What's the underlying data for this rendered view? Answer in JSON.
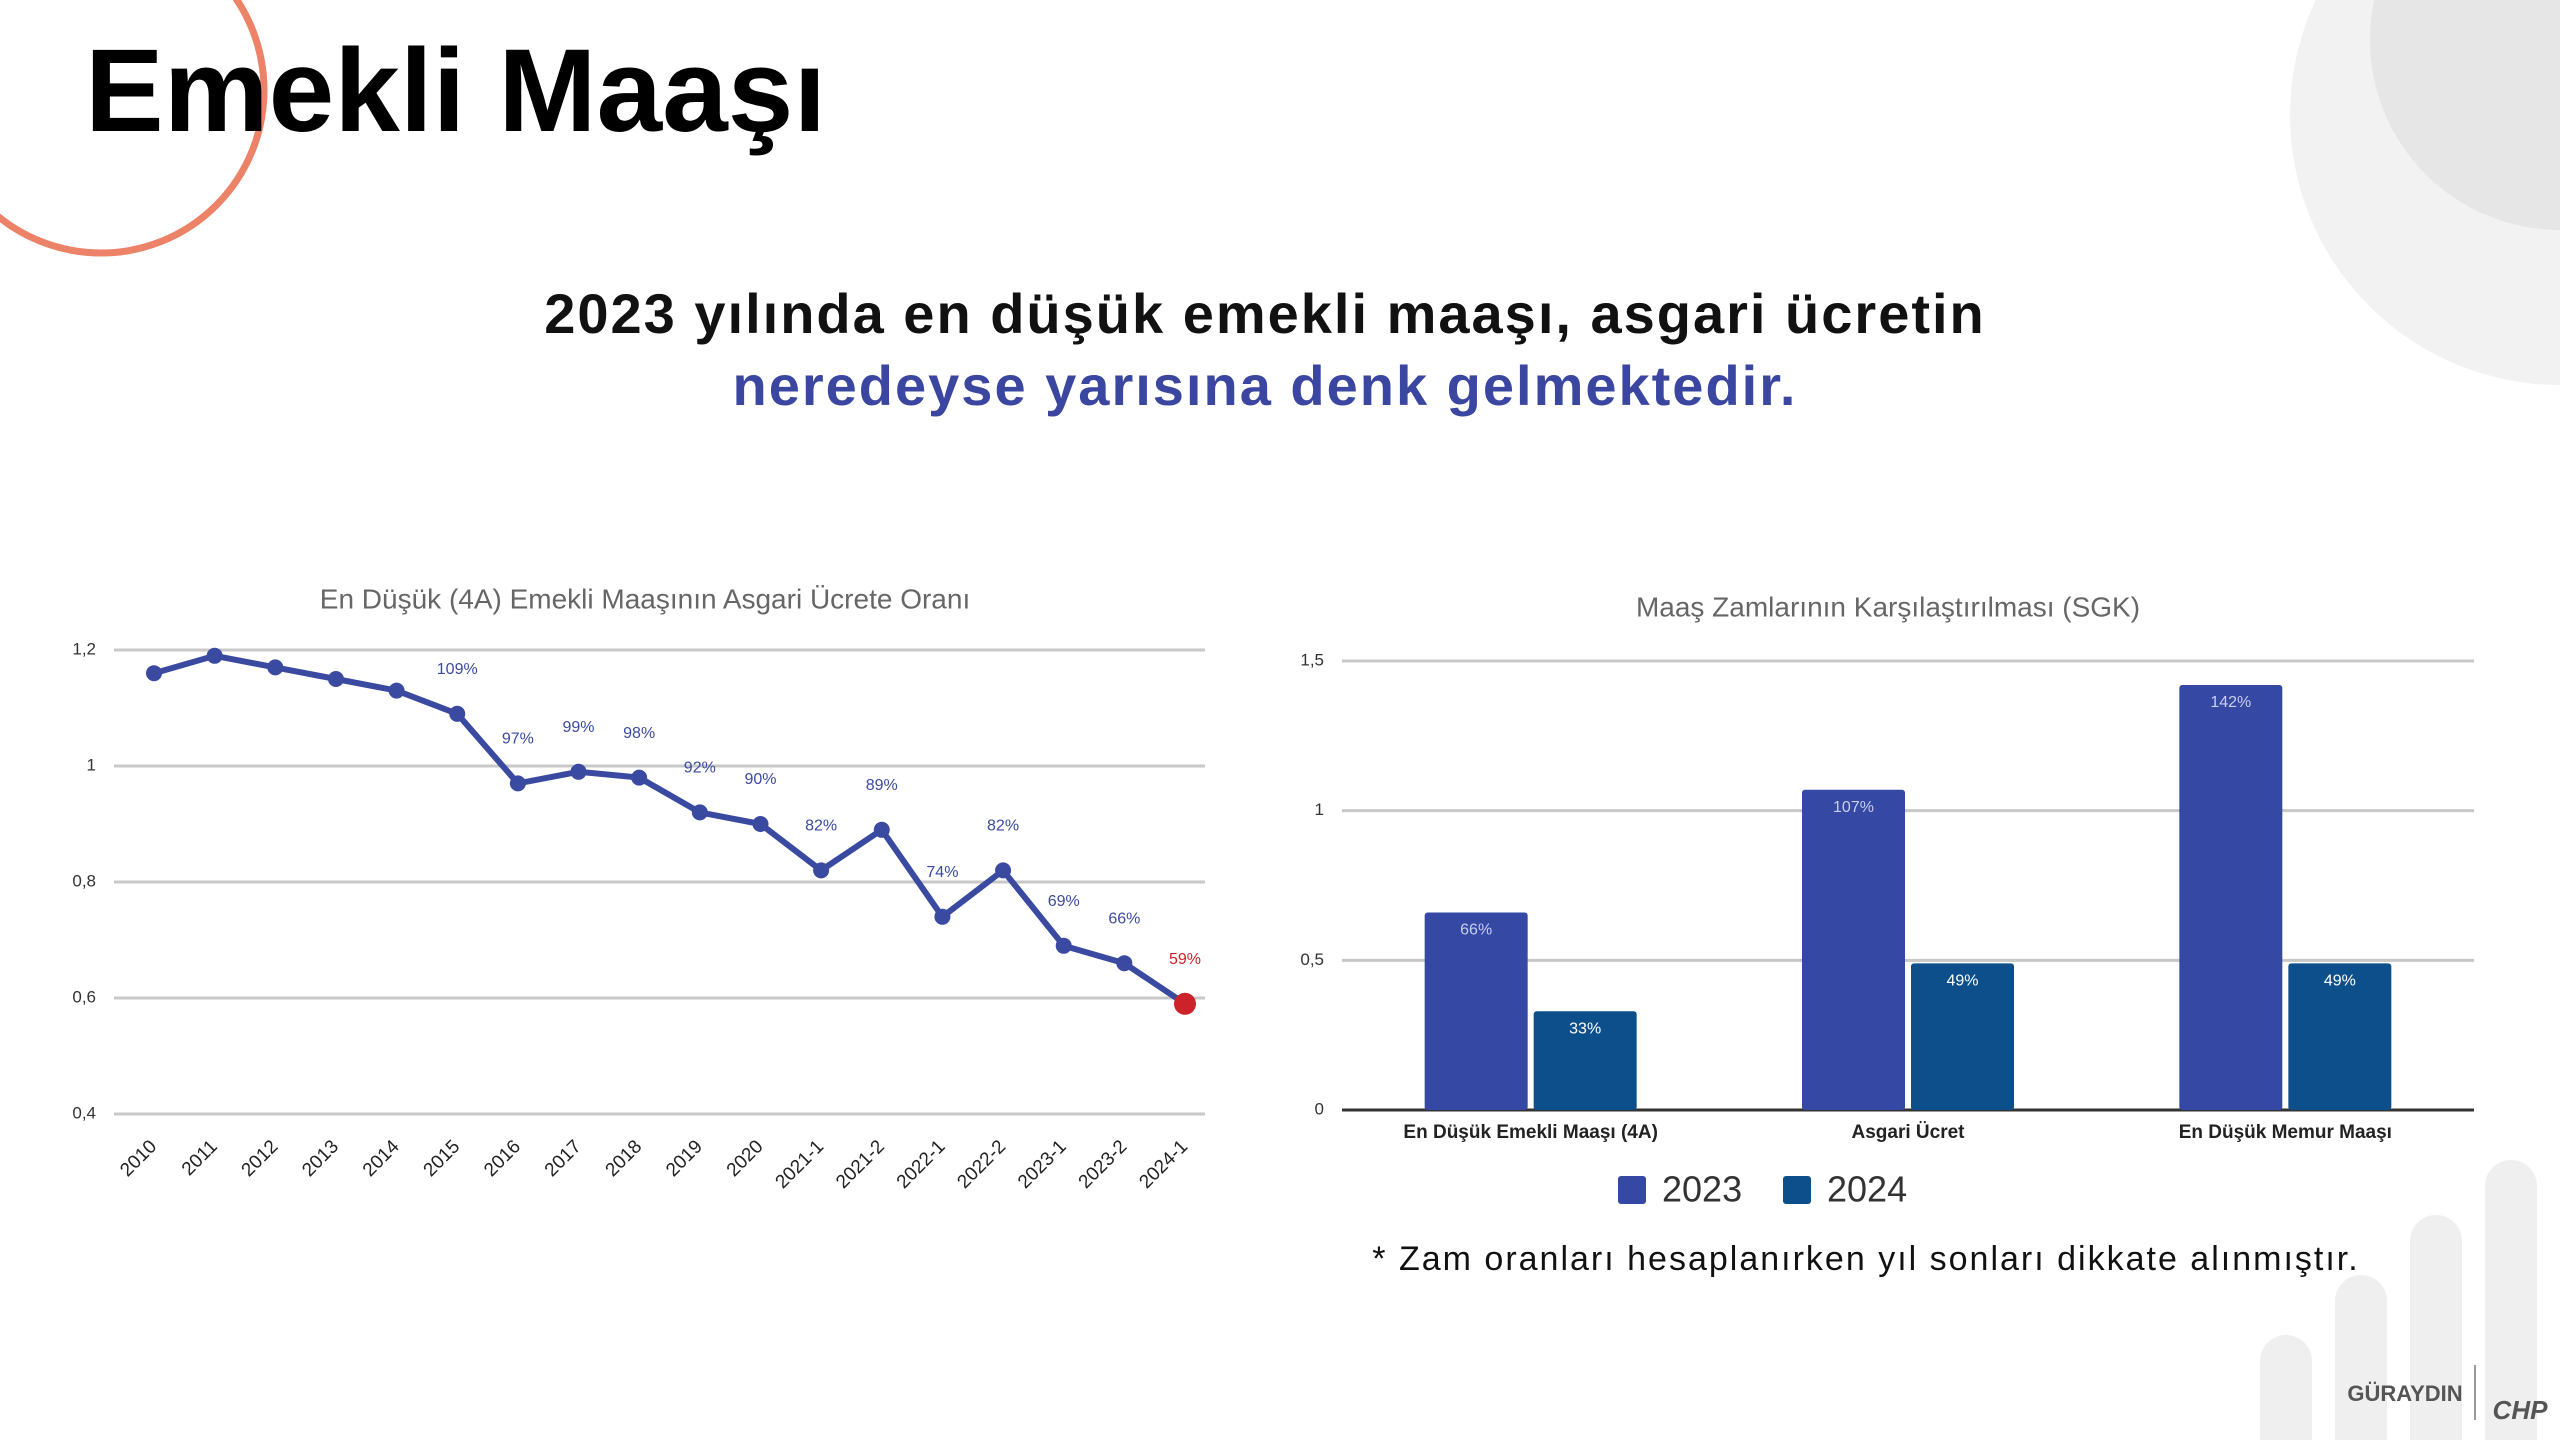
{
  "title": "Emekli Maaşı",
  "headline": [
    "2023 yılında en düşük emekli maaşı, asgari ücretin",
    "neredeyse yarısına denk gelmektedir."
  ],
  "chart_data": [
    {
      "type": "line",
      "title": "En Düşük (4A) Emekli Maaşının Asgari Ücrete Oranı",
      "categories": [
        "2010",
        "2011",
        "2012",
        "2013",
        "2014",
        "2015",
        "2016",
        "2017",
        "2018",
        "2019",
        "2020",
        "2021-1",
        "2021-2",
        "2022-1",
        "2022-2",
        "2023-1",
        "2023-2",
        "2024-1"
      ],
      "values": [
        1.16,
        1.19,
        1.17,
        1.15,
        1.13,
        1.09,
        0.97,
        0.99,
        0.98,
        0.92,
        0.9,
        0.82,
        0.89,
        0.74,
        0.82,
        0.69,
        0.66,
        0.59
      ],
      "value_labels": [
        null,
        null,
        null,
        null,
        null,
        "109%",
        "97%",
        "99%",
        "98%",
        "92%",
        "90%",
        "82%",
        "89%",
        "74%",
        "82%",
        "69%",
        "66%",
        "59%"
      ],
      "color": "#3a4aa0",
      "highlight_color": "#cc2229",
      "ylim": [
        0.4,
        1.2
      ],
      "yticks": [
        {
          "value": 0.4,
          "label": "0,4"
        },
        {
          "value": 0.6,
          "label": "0,6"
        },
        {
          "value": 0.8,
          "label": "0,8"
        },
        1,
        {
          "value": 1.2,
          "label": "1,2"
        }
      ],
      "grid": true
    },
    {
      "type": "bar",
      "title": "Maaş Zamlarının Karşılaştırılması (SGK)",
      "categories": [
        "En Düşük Emekli Maaşı (4A)",
        "Asgari Ücret",
        "En Düşük Memur Maaşı"
      ],
      "series": [
        {
          "name": "2023",
          "color": "#3548a3",
          "values": [
            0.66,
            1.07,
            1.42
          ],
          "value_labels": [
            "66%",
            "107%",
            "142%"
          ]
        },
        {
          "name": "2024",
          "color": "#0d4f8b",
          "values": [
            0.33,
            0.49,
            0.49
          ],
          "value_labels": [
            "33%",
            "49%",
            "49%"
          ]
        }
      ],
      "ylim": [
        0,
        1.5
      ],
      "yticks": [
        0,
        {
          "value": 0.5,
          "label": "0,5"
        },
        1,
        {
          "value": 1.5,
          "label": "1,5"
        }
      ],
      "grid": true,
      "legend": "bottom"
    }
  ],
  "footnote": "* Zam oranları hesaplanırken yıl sonları dikkate alınmıştır.",
  "logo": [
    "GÜRAYDIN",
    "CHP"
  ]
}
